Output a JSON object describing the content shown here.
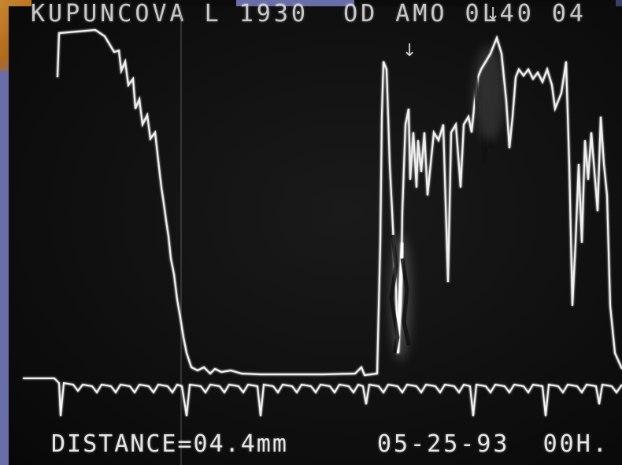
{
  "image": {
    "header_text": "KUPUNCOVA L 1930  OD AMO 0L40 04",
    "footer": {
      "distance_label": "DISTANCE=04.4mm",
      "datetime_label": "05-25-93  00H."
    },
    "markers": {
      "arrow_down_1": "↓",
      "arrow_down_2": "↓"
    }
  },
  "colors": {
    "trace": "#f2f2f2",
    "background": "#0b0b0b",
    "frame_blue": "#6a6ea8",
    "frame_orange": "#c8862e"
  }
}
